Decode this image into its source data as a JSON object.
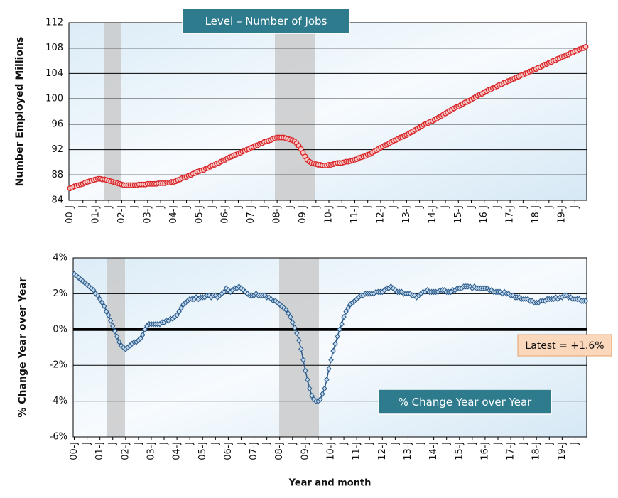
{
  "chart_data": [
    {
      "type": "line",
      "title": "Level – Number of Jobs",
      "ylabel": "Number Employed Millions",
      "marker": "circle",
      "color": "#d9262b",
      "fill": "#f6c9c6",
      "grid": true,
      "ylim": [
        84,
        112
      ],
      "yticks": [
        84,
        88,
        92,
        96,
        100,
        104,
        108,
        112
      ],
      "categories": [
        "00-J",
        null,
        null,
        null,
        null,
        null,
        "J",
        null,
        null,
        null,
        null,
        null,
        "01-J",
        null,
        null,
        null,
        null,
        null,
        "J",
        null,
        null,
        null,
        null,
        null,
        "02-J",
        null,
        null,
        null,
        null,
        null,
        "J",
        null,
        null,
        null,
        null,
        null,
        "03-J",
        null,
        null,
        null,
        null,
        null,
        "J",
        null,
        null,
        null,
        null,
        null,
        "04-J",
        null,
        null,
        null,
        null,
        null,
        "J",
        null,
        null,
        null,
        null,
        null,
        "05-J",
        null,
        null,
        null,
        null,
        null,
        "J",
        null,
        null,
        null,
        null,
        null,
        "06-J",
        null,
        null,
        null,
        null,
        null,
        "J",
        null,
        null,
        null,
        null,
        null,
        "07-J",
        null,
        null,
        null,
        null,
        null,
        "J",
        null,
        null,
        null,
        null,
        null,
        "08-J",
        null,
        null,
        null,
        null,
        null,
        "J",
        null,
        null,
        null,
        null,
        null,
        "09-J",
        null,
        null,
        null,
        null,
        null,
        "J",
        null,
        null,
        null,
        null,
        null,
        "10-J",
        null,
        null,
        null,
        null,
        null,
        "J",
        null,
        null,
        null,
        null,
        null,
        "11-J",
        null,
        null,
        null,
        null,
        null,
        "J",
        null,
        null,
        null,
        null,
        null,
        "12-J",
        null,
        null,
        null,
        null,
        null,
        "J",
        null,
        null,
        null,
        null,
        null,
        "13-J",
        null,
        null,
        null,
        null,
        null,
        "J",
        null,
        null,
        null,
        null,
        null,
        "14-J",
        null,
        null,
        null,
        null,
        null,
        "J",
        null,
        null,
        null,
        null,
        null,
        "15-J",
        null,
        null,
        null,
        null,
        null,
        "J",
        null,
        null,
        null,
        null,
        null,
        "16-J",
        null,
        null,
        null,
        null,
        null,
        "J",
        null,
        null,
        null,
        null,
        null,
        "17-J",
        null,
        null,
        null,
        null,
        null,
        "J",
        null,
        null,
        null,
        null,
        null,
        "18-J",
        null,
        null,
        null,
        null,
        null,
        "J",
        null,
        null,
        null,
        null,
        null,
        "19-J",
        null,
        null,
        null,
        null,
        null,
        "J",
        null,
        null,
        null,
        null,
        null
      ],
      "values": [
        85.9,
        86.0,
        86.2,
        86.3,
        86.4,
        86.5,
        86.6,
        86.8,
        86.9,
        87.0,
        87.1,
        87.2,
        87.3,
        87.4,
        87.4,
        87.3,
        87.3,
        87.2,
        87.1,
        87.0,
        86.9,
        86.8,
        86.7,
        86.6,
        86.5,
        86.4,
        86.4,
        86.4,
        86.4,
        86.4,
        86.4,
        86.4,
        86.5,
        86.5,
        86.5,
        86.5,
        86.6,
        86.6,
        86.6,
        86.6,
        86.6,
        86.7,
        86.7,
        86.7,
        86.7,
        86.8,
        86.8,
        86.9,
        86.9,
        87.0,
        87.2,
        87.3,
        87.5,
        87.6,
        87.7,
        87.9,
        88.0,
        88.2,
        88.3,
        88.5,
        88.6,
        88.7,
        88.8,
        89.0,
        89.1,
        89.3,
        89.5,
        89.6,
        89.8,
        89.9,
        90.1,
        90.3,
        90.4,
        90.6,
        90.8,
        90.9,
        91.1,
        91.2,
        91.4,
        91.5,
        91.7,
        91.8,
        92.0,
        92.1,
        92.3,
        92.4,
        92.6,
        92.7,
        92.9,
        93.0,
        93.2,
        93.3,
        93.4,
        93.5,
        93.7,
        93.8,
        93.9,
        93.9,
        93.9,
        93.9,
        93.8,
        93.7,
        93.6,
        93.5,
        93.3,
        93.0,
        92.6,
        92.1,
        91.5,
        90.9,
        90.4,
        90.1,
        89.9,
        89.8,
        89.7,
        89.6,
        89.6,
        89.5,
        89.5,
        89.5,
        89.6,
        89.6,
        89.7,
        89.8,
        89.9,
        89.9,
        89.9,
        90.0,
        90.1,
        90.1,
        90.2,
        90.3,
        90.4,
        90.5,
        90.7,
        90.8,
        90.9,
        91.0,
        91.2,
        91.3,
        91.5,
        91.7,
        91.9,
        92.1,
        92.3,
        92.5,
        92.7,
        92.8,
        93.0,
        93.2,
        93.4,
        93.5,
        93.7,
        93.9,
        94.0,
        94.2,
        94.3,
        94.5,
        94.7,
        94.9,
        95.1,
        95.3,
        95.5,
        95.7,
        95.9,
        96.1,
        96.2,
        96.4,
        96.5,
        96.7,
        96.9,
        97.1,
        97.3,
        97.5,
        97.7,
        97.9,
        98.1,
        98.3,
        98.5,
        98.7,
        98.8,
        99.0,
        99.2,
        99.4,
        99.5,
        99.7,
        99.9,
        100.1,
        100.3,
        100.5,
        100.7,
        100.8,
        101.0,
        101.2,
        101.4,
        101.5,
        101.7,
        101.8,
        102.0,
        102.2,
        102.3,
        102.5,
        102.6,
        102.8,
        102.9,
        103.1,
        103.2,
        103.4,
        103.5,
        103.7,
        103.8,
        104.0,
        104.1,
        104.3,
        104.4,
        104.6,
        104.7,
        104.9,
        105.0,
        105.2,
        105.4,
        105.5,
        105.7,
        105.8,
        106.0,
        106.1,
        106.3,
        106.4,
        106.6,
        106.7,
        106.9,
        107.0,
        107.2,
        107.3,
        107.5,
        107.6,
        107.8,
        107.9,
        108.0,
        108.2
      ]
    },
    {
      "type": "line",
      "title": "% Change Year over Year",
      "ylabel": "% Change Year over Year",
      "xlabel": "Year and month",
      "annotation": "Latest = +1.6%",
      "marker": "diamond",
      "color": "#2d5d8c",
      "fill": "#c9dcef",
      "grid": true,
      "zero_line": true,
      "ylim": [
        -6,
        4
      ],
      "yticks": [
        {
          "value": -6,
          "label": "-6%"
        },
        {
          "value": -4,
          "label": "-4%"
        },
        {
          "value": -2,
          "label": "-2%"
        },
        {
          "value": 0,
          "label": "0%"
        },
        {
          "value": 2,
          "label": "2%"
        },
        {
          "value": 4,
          "label": "4%"
        }
      ],
      "categories": [
        "00-J",
        null,
        null,
        null,
        null,
        null,
        "J",
        null,
        null,
        null,
        null,
        null,
        "01-J",
        null,
        null,
        null,
        null,
        null,
        "J",
        null,
        null,
        null,
        null,
        null,
        "02-J",
        null,
        null,
        null,
        null,
        null,
        "J",
        null,
        null,
        null,
        null,
        null,
        "03-J",
        null,
        null,
        null,
        null,
        null,
        "J",
        null,
        null,
        null,
        null,
        null,
        "04-J",
        null,
        null,
        null,
        null,
        null,
        "J",
        null,
        null,
        null,
        null,
        null,
        "05-J",
        null,
        null,
        null,
        null,
        null,
        "J",
        null,
        null,
        null,
        null,
        null,
        "06-J",
        null,
        null,
        null,
        null,
        null,
        "J",
        null,
        null,
        null,
        null,
        null,
        "07-J",
        null,
        null,
        null,
        null,
        null,
        "J",
        null,
        null,
        null,
        null,
        null,
        "08-J",
        null,
        null,
        null,
        null,
        null,
        "J",
        null,
        null,
        null,
        null,
        null,
        "09-J",
        null,
        null,
        null,
        null,
        null,
        "J",
        null,
        null,
        null,
        null,
        null,
        "10-J",
        null,
        null,
        null,
        null,
        null,
        "J",
        null,
        null,
        null,
        null,
        null,
        "11-J",
        null,
        null,
        null,
        null,
        null,
        "J",
        null,
        null,
        null,
        null,
        null,
        "12-J",
        null,
        null,
        null,
        null,
        null,
        "J",
        null,
        null,
        null,
        null,
        null,
        "13-J",
        null,
        null,
        null,
        null,
        null,
        "J",
        null,
        null,
        null,
        null,
        null,
        "14-J",
        null,
        null,
        null,
        null,
        null,
        "J",
        null,
        null,
        null,
        null,
        null,
        "15-J",
        null,
        null,
        null,
        null,
        null,
        "J",
        null,
        null,
        null,
        null,
        null,
        "16-J",
        null,
        null,
        null,
        null,
        null,
        "J",
        null,
        null,
        null,
        null,
        null,
        "17-J",
        null,
        null,
        null,
        null,
        null,
        "J",
        null,
        null,
        null,
        null,
        null,
        "18-J",
        null,
        null,
        null,
        null,
        null,
        "J",
        null,
        null,
        null,
        null,
        null,
        "19-J",
        null,
        null,
        null,
        null,
        null,
        "J",
        null,
        null,
        null,
        null,
        null
      ],
      "values": [
        3.1,
        3.0,
        2.9,
        2.8,
        2.7,
        2.6,
        2.5,
        2.4,
        2.3,
        2.2,
        2.0,
        1.9,
        1.7,
        1.5,
        1.3,
        1.0,
        0.8,
        0.5,
        0.2,
        -0.1,
        -0.4,
        -0.7,
        -0.9,
        -1.0,
        -1.1,
        -1.0,
        -0.9,
        -0.8,
        -0.7,
        -0.7,
        -0.6,
        -0.5,
        -0.3,
        0.0,
        0.2,
        0.3,
        0.3,
        0.3,
        0.3,
        0.3,
        0.3,
        0.4,
        0.4,
        0.5,
        0.5,
        0.6,
        0.6,
        0.7,
        0.8,
        1.0,
        1.2,
        1.4,
        1.5,
        1.6,
        1.7,
        1.7,
        1.7,
        1.8,
        1.7,
        1.8,
        1.8,
        1.8,
        1.9,
        1.9,
        1.8,
        1.9,
        1.9,
        1.8,
        1.9,
        2.0,
        2.1,
        2.3,
        2.2,
        2.1,
        2.2,
        2.3,
        2.3,
        2.4,
        2.3,
        2.2,
        2.1,
        2.0,
        1.9,
        1.9,
        1.9,
        2.0,
        1.9,
        1.9,
        1.9,
        1.9,
        1.8,
        1.8,
        1.7,
        1.6,
        1.6,
        1.5,
        1.4,
        1.3,
        1.2,
        1.1,
        0.9,
        0.7,
        0.4,
        0.1,
        -0.2,
        -0.6,
        -1.1,
        -1.7,
        -2.3,
        -2.8,
        -3.3,
        -3.7,
        -3.9,
        -4.0,
        -4.0,
        -3.9,
        -3.6,
        -3.3,
        -2.8,
        -2.2,
        -1.7,
        -1.2,
        -0.8,
        -0.4,
        0.0,
        0.3,
        0.7,
        1.0,
        1.2,
        1.4,
        1.5,
        1.6,
        1.7,
        1.8,
        1.9,
        1.9,
        2.0,
        2.0,
        2.0,
        2.0,
        2.0,
        2.1,
        2.1,
        2.1,
        2.1,
        2.2,
        2.3,
        2.3,
        2.4,
        2.3,
        2.2,
        2.1,
        2.1,
        2.1,
        2.0,
        2.0,
        2.0,
        2.0,
        1.9,
        1.9,
        1.8,
        1.9,
        2.0,
        2.1,
        2.1,
        2.2,
        2.1,
        2.1,
        2.1,
        2.1,
        2.1,
        2.2,
        2.2,
        2.2,
        2.1,
        2.1,
        2.1,
        2.2,
        2.2,
        2.3,
        2.3,
        2.3,
        2.4,
        2.4,
        2.4,
        2.4,
        2.3,
        2.4,
        2.3,
        2.3,
        2.3,
        2.3,
        2.3,
        2.3,
        2.2,
        2.2,
        2.1,
        2.1,
        2.1,
        2.1,
        2.0,
        2.1,
        2.0,
        2.0,
        1.9,
        1.9,
        1.8,
        1.8,
        1.8,
        1.7,
        1.7,
        1.7,
        1.7,
        1.6,
        1.6,
        1.5,
        1.5,
        1.5,
        1.6,
        1.6,
        1.6,
        1.7,
        1.7,
        1.7,
        1.7,
        1.8,
        1.7,
        1.8,
        1.8,
        1.9,
        1.9,
        1.8,
        1.8,
        1.7,
        1.7,
        1.7,
        1.7,
        1.6,
        1.6,
        1.6
      ]
    }
  ]
}
